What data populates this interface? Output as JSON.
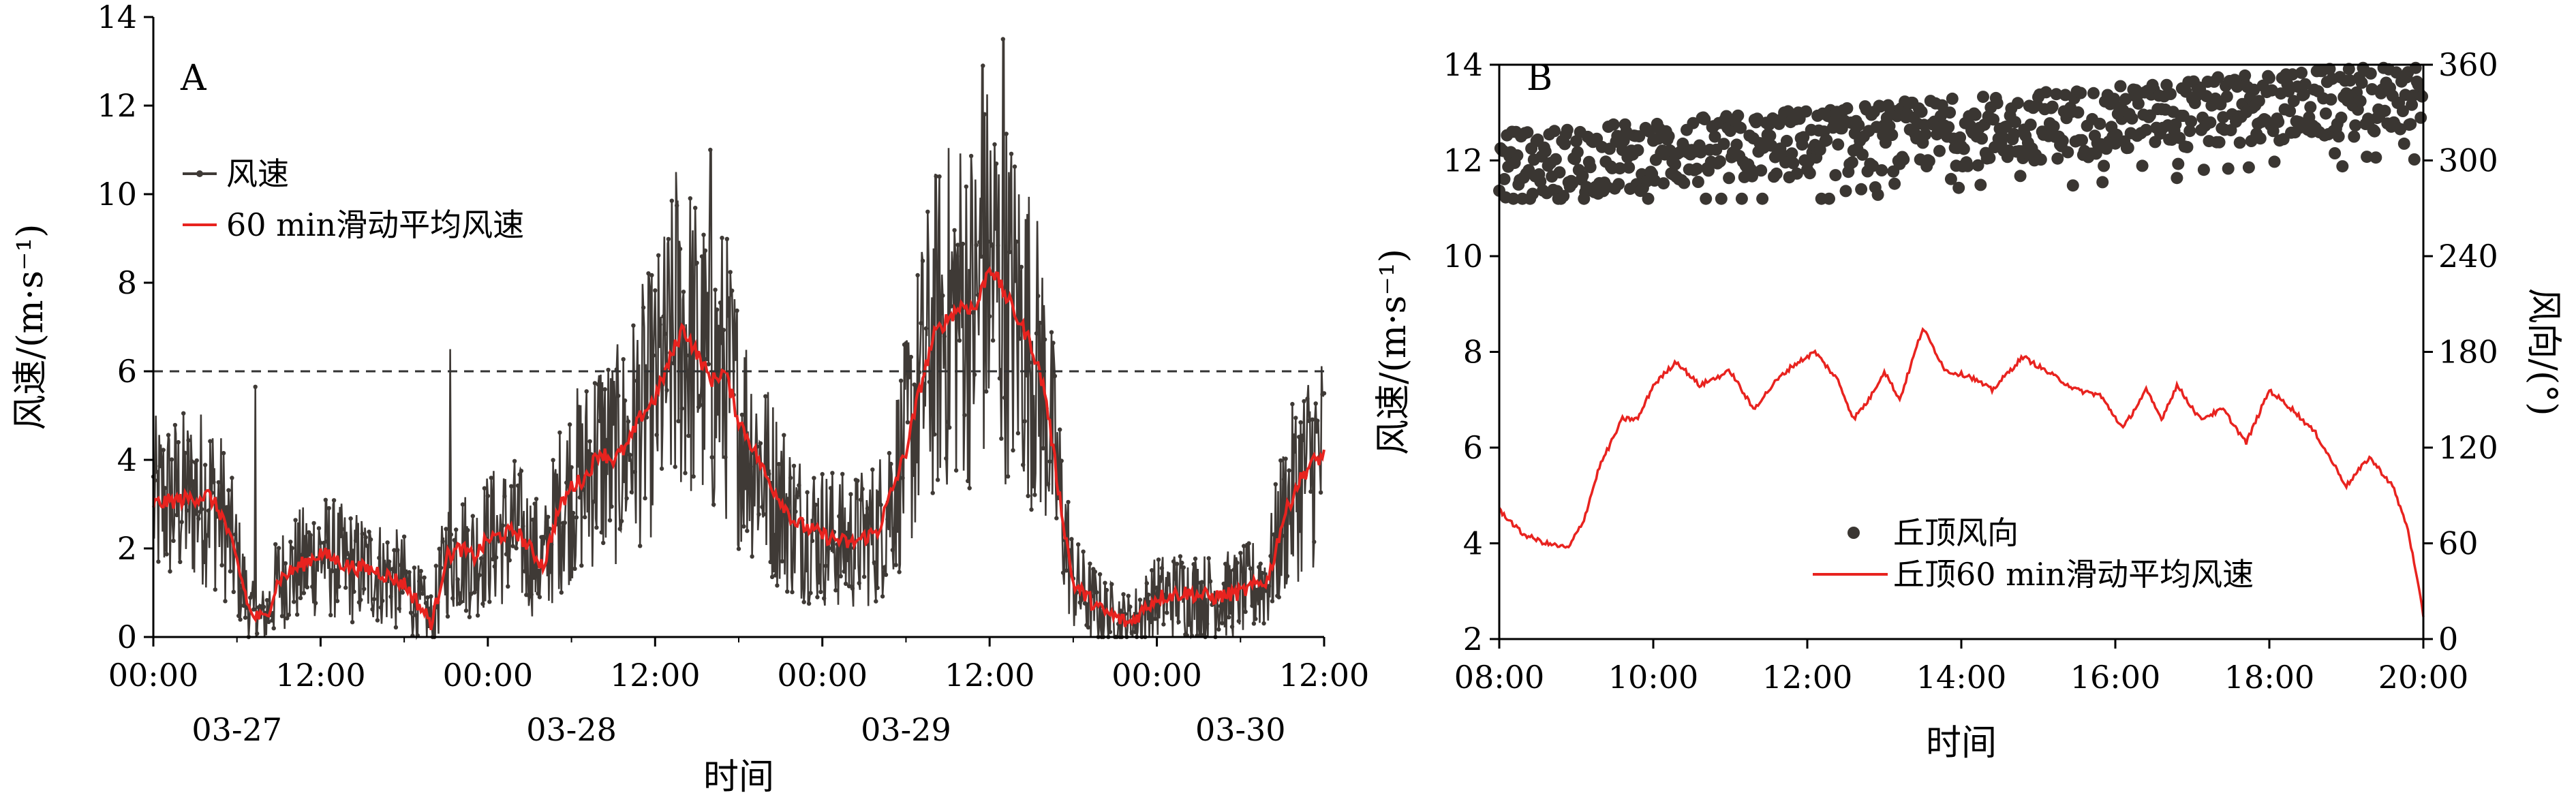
{
  "chart_data": [
    {
      "panel_label": "A",
      "type": "line",
      "xlabel": "时间",
      "ylabel": "风速/(m·s⁻¹)",
      "ylim": [
        0,
        14
      ],
      "xlim_hours": [
        0,
        84
      ],
      "yticks": [
        0,
        2,
        4,
        6,
        8,
        10,
        12,
        14
      ],
      "xtick_labels": [
        "00:00",
        "12:00",
        "00:00",
        "12:00",
        "00:00",
        "12:00",
        "00:00",
        "12:00"
      ],
      "date_labels": [
        {
          "text": "03-27",
          "at_hour": 6
        },
        {
          "text": "03-28",
          "at_hour": 30
        },
        {
          "text": "03-29",
          "at_hour": 54
        },
        {
          "text": "03-30",
          "at_hour": 78
        }
      ],
      "reference_line_y": 6,
      "legend_position": "upper-left",
      "series": [
        {
          "name": "风速",
          "color": "#3f3a36",
          "style": "line-with-markers",
          "note_values": "raw readings, dense; approximated by smoothed value ± noise"
        },
        {
          "name": "60 min滑动平均风速",
          "color": "#e8231f",
          "style": "line"
        }
      ],
      "smoothed_keypoints": {
        "hours": [
          0,
          2,
          4,
          5,
          6,
          7,
          8,
          9,
          10,
          12,
          14,
          16,
          18,
          20,
          21,
          22,
          23,
          24,
          26,
          28,
          29,
          30,
          31,
          32,
          33,
          34,
          35,
          36,
          37,
          38,
          39,
          40,
          41,
          42,
          43,
          44,
          46,
          48,
          50,
          52,
          54,
          55,
          56,
          57,
          58,
          59,
          60,
          61,
          62,
          63,
          64,
          65,
          66,
          67,
          68,
          70,
          72,
          74,
          76,
          78,
          80,
          81,
          82,
          83,
          84
        ],
        "values": [
          3.0,
          3.1,
          3.2,
          2.7,
          1.7,
          0.5,
          0.4,
          1.3,
          1.5,
          1.9,
          1.6,
          1.5,
          1.2,
          0.3,
          1.8,
          2.0,
          1.8,
          2.2,
          2.4,
          1.6,
          2.8,
          3.4,
          3.6,
          4.2,
          4.0,
          4.3,
          5.0,
          5.4,
          6.2,
          7.0,
          6.4,
          5.8,
          6.0,
          4.9,
          4.3,
          3.6,
          2.6,
          2.3,
          2.1,
          2.4,
          4.2,
          5.6,
          6.8,
          7.2,
          7.5,
          7.4,
          8.4,
          7.8,
          7.2,
          6.6,
          5.5,
          3.2,
          1.2,
          0.9,
          0.6,
          0.3,
          0.9,
          1.0,
          0.9,
          1.0,
          1.3,
          2.6,
          3.4,
          3.9,
          4.1
        ]
      },
      "peak_raw_values": [
        {
          "hour": 7.3,
          "value": 5.65
        },
        {
          "hour": 21.3,
          "value": 6.5
        },
        {
          "hour": 37.5,
          "value": 10.5
        },
        {
          "hour": 40.0,
          "value": 11.0
        },
        {
          "hour": 61.0,
          "value": 13.5
        },
        {
          "hour": 59.5,
          "value": 12.9
        }
      ]
    },
    {
      "panel_label": "B",
      "type": "line+scatter",
      "xlabel": "时间",
      "ylabel": "风速/(m·s⁻¹)",
      "ylabel_right": "风向/(°)",
      "ylim": [
        2,
        14
      ],
      "ylim_right": [
        0,
        360
      ],
      "xlim_hours": [
        8,
        20
      ],
      "yticks": [
        2,
        4,
        6,
        8,
        10,
        12,
        14
      ],
      "yticks_right": [
        0,
        60,
        120,
        180,
        240,
        300,
        360
      ],
      "xtick_labels": [
        "08:00",
        "10:00",
        "12:00",
        "14:00",
        "16:00",
        "18:00",
        "20:00"
      ],
      "legend_position": "lower-center",
      "series": [
        {
          "name": "丘顶风向",
          "color": "#3a3632",
          "style": "scatter",
          "axis": "right",
          "note_values": "direction 280°–360°, trend rising from ~300° to ~340°"
        },
        {
          "name": "丘顶60 min滑动平均风速",
          "color": "#e8231f",
          "style": "line",
          "axis": "left",
          "x": [
            8.0,
            8.3,
            8.6,
            8.9,
            9.1,
            9.3,
            9.6,
            9.8,
            10.0,
            10.3,
            10.6,
            11.0,
            11.3,
            11.6,
            11.8,
            12.1,
            12.4,
            12.6,
            12.8,
            13.0,
            13.2,
            13.5,
            13.8,
            14.1,
            14.4,
            14.8,
            15.2,
            15.5,
            15.8,
            16.1,
            16.4,
            16.6,
            16.8,
            17.1,
            17.4,
            17.7,
            18.0,
            18.3,
            18.6,
            19.0,
            19.3,
            19.6,
            19.8,
            20.0
          ],
          "y": [
            4.7,
            4.2,
            4.0,
            3.9,
            4.5,
            5.6,
            6.6,
            6.6,
            7.3,
            7.8,
            7.3,
            7.6,
            6.8,
            7.4,
            7.7,
            8.0,
            7.4,
            6.6,
            7.0,
            7.6,
            7.0,
            8.5,
            7.6,
            7.5,
            7.2,
            7.9,
            7.5,
            7.2,
            7.1,
            6.4,
            7.2,
            6.6,
            7.3,
            6.6,
            6.8,
            6.1,
            7.2,
            6.8,
            6.3,
            5.2,
            5.8,
            5.2,
            4.3,
            2.5
          ]
        }
      ]
    }
  ]
}
